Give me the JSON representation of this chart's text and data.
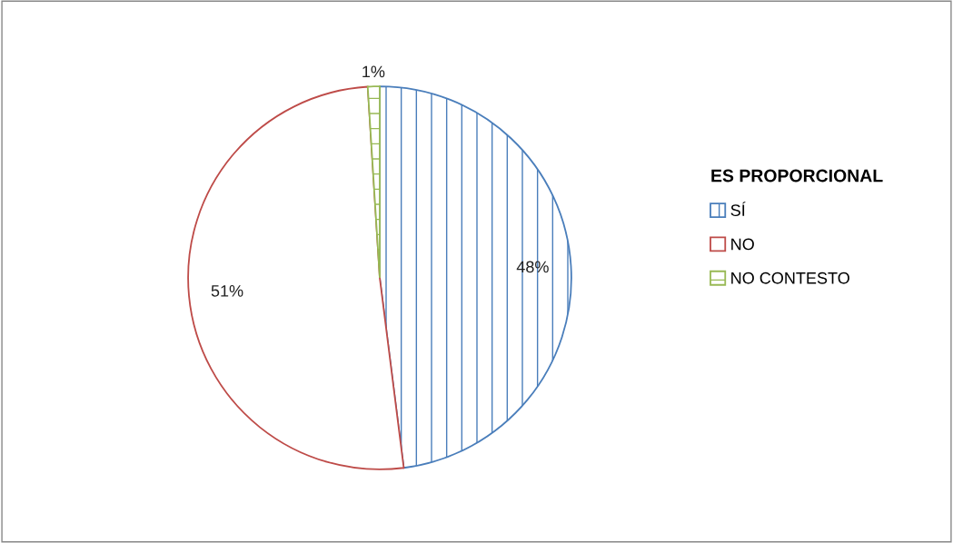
{
  "chart_data": {
    "type": "pie",
    "legend_title": "ES PROPORCIONAL",
    "categories": [
      "SÍ",
      "NO",
      "NO CONTESTO"
    ],
    "values": [
      48,
      51,
      1
    ],
    "colors": [
      "#4a7ebb",
      "#be4b48",
      "#98b954"
    ],
    "value_labels": [
      "48%",
      "51%",
      "1%"
    ],
    "legend": "right"
  }
}
